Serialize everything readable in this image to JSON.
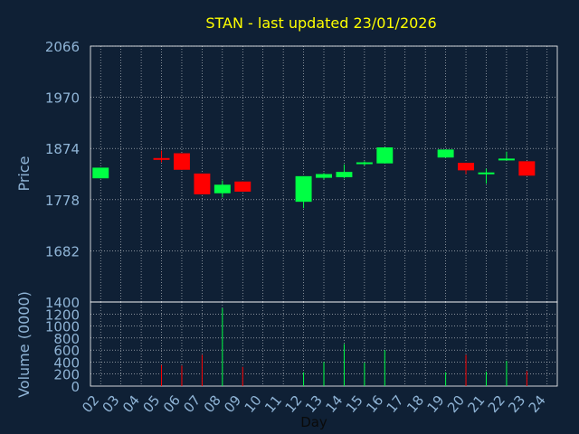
{
  "chart_data": {
    "type": "candlestick",
    "title": "STAN - last updated 23/01/2026",
    "xlabel": "Day",
    "ylabel": "Price",
    "volume_label": "Volume (0000)",
    "price_ticks": [
      "2066",
      "1970",
      "1874",
      "1778",
      "1682"
    ],
    "volume_ticks": [
      "1400",
      "1200",
      "1000",
      "800",
      "600",
      "400",
      "200",
      "0"
    ],
    "price_range": [
      1586,
      2066
    ],
    "volume_range": [
      0,
      1400
    ],
    "days": [
      "02",
      "03",
      "04",
      "05",
      "06",
      "07",
      "08",
      "09",
      "10",
      "11",
      "12",
      "13",
      "14",
      "15",
      "16",
      "17",
      "18",
      "19",
      "20",
      "21",
      "22",
      "23",
      "24"
    ],
    "candles": [
      {
        "day": "02",
        "open": 1818,
        "close": 1838,
        "high": 1838,
        "low": 1818,
        "volume": 0
      },
      {
        "day": "05",
        "open": 1856,
        "close": 1853,
        "high": 1870,
        "low": 1848,
        "volume": 350
      },
      {
        "day": "06",
        "open": 1865,
        "close": 1834,
        "high": 1865,
        "low": 1834,
        "volume": 340
      },
      {
        "day": "07",
        "open": 1827,
        "close": 1788,
        "high": 1827,
        "low": 1788,
        "volume": 520
      },
      {
        "day": "08",
        "open": 1790,
        "close": 1806,
        "high": 1814,
        "low": 1782,
        "volume": 1300
      },
      {
        "day": "09",
        "open": 1812,
        "close": 1793,
        "high": 1812,
        "low": 1793,
        "volume": 320
      },
      {
        "day": "12",
        "open": 1774,
        "close": 1822,
        "high": 1822,
        "low": 1762,
        "volume": 230
      },
      {
        "day": "13",
        "open": 1819,
        "close": 1826,
        "high": 1828,
        "low": 1816,
        "volume": 400
      },
      {
        "day": "14",
        "open": 1820,
        "close": 1830,
        "high": 1844,
        "low": 1818,
        "volume": 700
      },
      {
        "day": "15",
        "open": 1846,
        "close": 1848,
        "high": 1850,
        "low": 1842,
        "volume": 390
      },
      {
        "day": "16",
        "open": 1846,
        "close": 1876,
        "high": 1876,
        "low": 1846,
        "volume": 600
      },
      {
        "day": "19",
        "open": 1857,
        "close": 1872,
        "high": 1872,
        "low": 1857,
        "volume": 230
      },
      {
        "day": "20",
        "open": 1847,
        "close": 1833,
        "high": 1847,
        "low": 1826,
        "volume": 520
      },
      {
        "day": "21",
        "open": 1826,
        "close": 1829,
        "high": 1836,
        "low": 1808,
        "volume": 240
      },
      {
        "day": "22",
        "open": 1852,
        "close": 1855,
        "high": 1868,
        "low": 1852,
        "volume": 420
      },
      {
        "day": "23",
        "open": 1850,
        "close": 1823,
        "high": 1850,
        "low": 1823,
        "volume": 250
      }
    ],
    "colors": {
      "up": "#00ff44",
      "down": "#ff0000",
      "title": "#ffff00",
      "axis_text": "#8fb4d6",
      "grid": "#ffffff",
      "background": "#0f2035"
    },
    "grid": true
  }
}
